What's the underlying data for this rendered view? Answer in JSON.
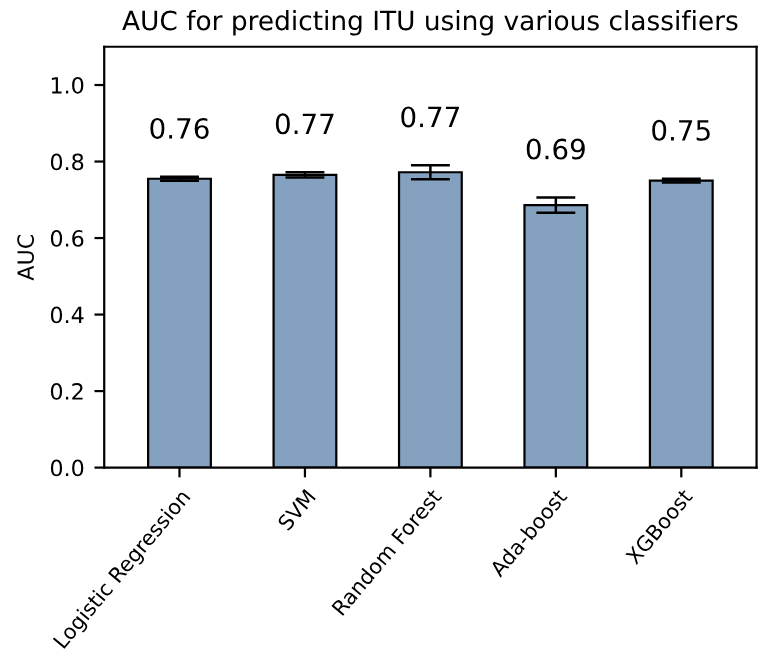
{
  "chart_data": {
    "type": "bar",
    "title": "AUC for predicting ITU using various classifiers",
    "ylabel": "AUC",
    "categories": [
      "Logistic Regression",
      "SVM",
      "Random Forest",
      "Ada-boost",
      "XGBoost"
    ],
    "values": [
      0.755,
      0.765,
      0.772,
      0.686,
      0.75
    ],
    "errors": [
      0.005,
      0.007,
      0.018,
      0.02,
      0.005
    ],
    "value_labels": [
      "0.76",
      "0.77",
      "0.77",
      "0.69",
      "0.75"
    ],
    "color": "#84a1bf",
    "ylim": [
      0,
      1.1
    ],
    "yticks": [
      {
        "value": 0,
        "label": "0.0"
      },
      {
        "value": 0.2,
        "label": "0.2"
      },
      {
        "value": 0.4,
        "label": "0.4"
      },
      {
        "value": 0.6,
        "label": "0.6"
      },
      {
        "value": 0.8,
        "label": "0.8"
      },
      {
        "value": 1.0,
        "label": "1.0"
      }
    ],
    "grid": false,
    "legend": false
  }
}
